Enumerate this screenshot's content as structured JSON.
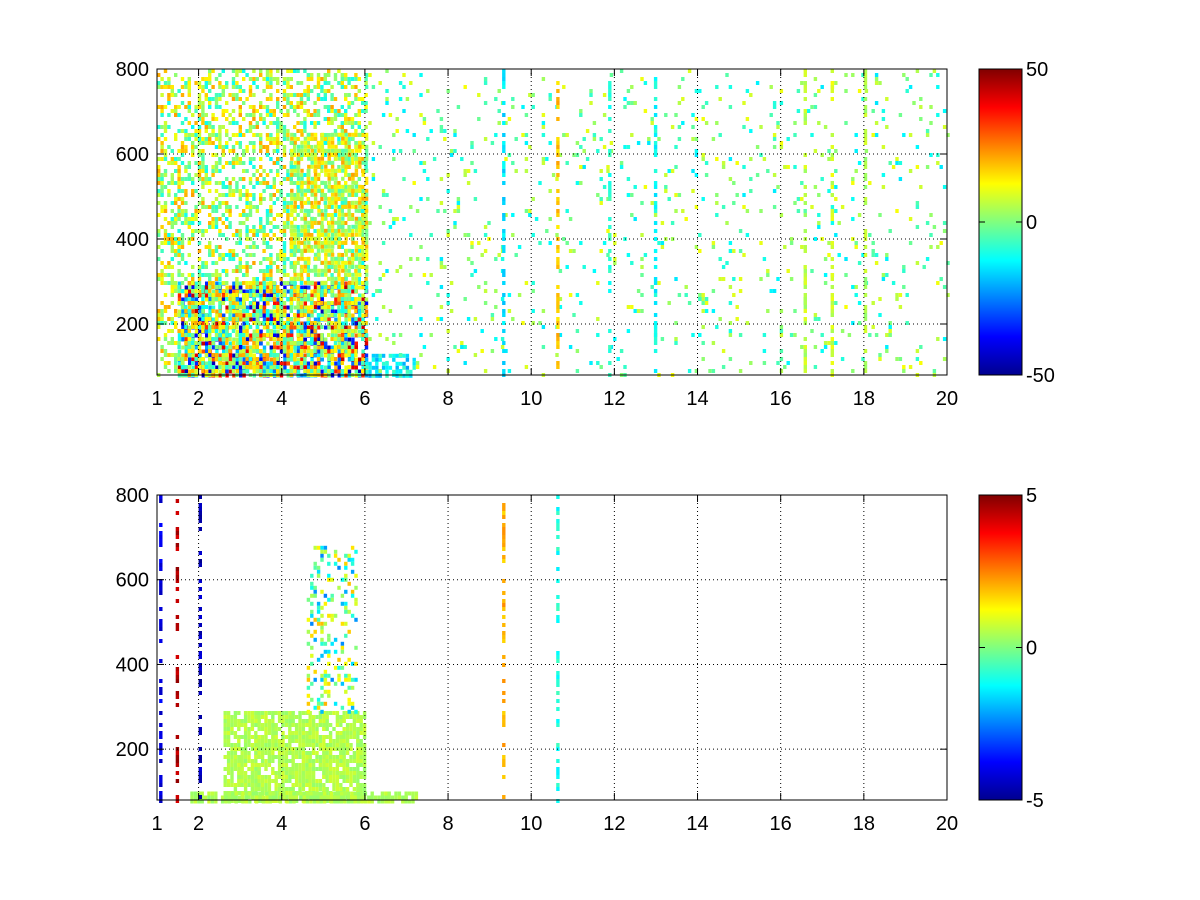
{
  "chart_data": [
    {
      "type": "heatmap",
      "xlim": [
        1,
        20
      ],
      "ylim": [
        80,
        800
      ],
      "x_ticks": [
        "1",
        "2",
        "4",
        "6",
        "8",
        "10",
        "12",
        "14",
        "16",
        "18",
        "20"
      ],
      "x_tick_values": [
        1,
        2,
        4,
        6,
        8,
        10,
        12,
        14,
        16,
        18,
        20
      ],
      "y_ticks": [
        "200",
        "400",
        "600",
        "800"
      ],
      "y_tick_values": [
        200,
        400,
        600,
        800
      ],
      "grid": true,
      "colormap": "jet",
      "colorbar": {
        "min": -50,
        "max": 50,
        "ticks": [
          "-50",
          "0",
          "50"
        ],
        "tick_values": [
          -50,
          0,
          50
        ]
      },
      "regions": [
        {
          "x": [
            1.5,
            6.0
          ],
          "y": [
            80,
            300
          ],
          "v": [
            -45,
            45
          ],
          "density": 0.75
        },
        {
          "x": [
            1.0,
            6.0
          ],
          "y": [
            80,
            800
          ],
          "v": [
            -12,
            22
          ],
          "density": 0.45
        },
        {
          "x": [
            4.2,
            6.0
          ],
          "y": [
            300,
            650
          ],
          "v": [
            -5,
            22
          ],
          "density": 0.55
        },
        {
          "x": [
            6.0,
            7.2
          ],
          "y": [
            80,
            130
          ],
          "v": [
            -22,
            -5
          ],
          "density": 0.6
        },
        {
          "x": [
            6.0,
            20.0
          ],
          "y": [
            80,
            800
          ],
          "v": [
            -15,
            12
          ],
          "density": 0.06
        }
      ],
      "columns": [
        {
          "x": 9.3,
          "v": -15
        },
        {
          "x": 10.6,
          "v": 18
        },
        {
          "x": 11.85,
          "v": -8
        },
        {
          "x": 12.95,
          "v": -12
        },
        {
          "x": 16.55,
          "v": 6
        },
        {
          "x": 17.2,
          "v": 8
        },
        {
          "x": 18.0,
          "v": 5
        }
      ]
    },
    {
      "type": "heatmap",
      "xlim": [
        1,
        20
      ],
      "ylim": [
        80,
        800
      ],
      "x_ticks": [
        "1",
        "2",
        "4",
        "6",
        "8",
        "10",
        "12",
        "14",
        "16",
        "18",
        "20"
      ],
      "x_tick_values": [
        1,
        2,
        4,
        6,
        8,
        10,
        12,
        14,
        16,
        18,
        20
      ],
      "y_ticks": [
        "200",
        "400",
        "600",
        "800"
      ],
      "y_tick_values": [
        200,
        400,
        600,
        800
      ],
      "grid": true,
      "colormap": "jet",
      "colorbar": {
        "min": -5,
        "max": 5,
        "ticks": [
          "-5",
          "0",
          "5"
        ],
        "tick_values": [
          -5,
          0,
          5
        ]
      },
      "regions": [
        {
          "x": [
            2.6,
            6.0
          ],
          "y": [
            80,
            290
          ],
          "v": [
            0.2,
            0.8
          ],
          "density": 0.8
        },
        {
          "x": [
            1.8,
            7.2
          ],
          "y": [
            80,
            100
          ],
          "v": [
            0.2,
            0.8
          ],
          "density": 0.75
        },
        {
          "x": [
            4.6,
            5.8
          ],
          "y": [
            290,
            680
          ],
          "v": [
            -2.5,
            2
          ],
          "density": 0.3
        }
      ],
      "columns": [
        {
          "x": 1.05,
          "v": -4
        },
        {
          "x": 1.45,
          "v": 4.5
        },
        {
          "x": 2.0,
          "v": -4.5
        },
        {
          "x": 9.3,
          "v": 2
        },
        {
          "x": 10.6,
          "v": -1
        }
      ]
    }
  ]
}
